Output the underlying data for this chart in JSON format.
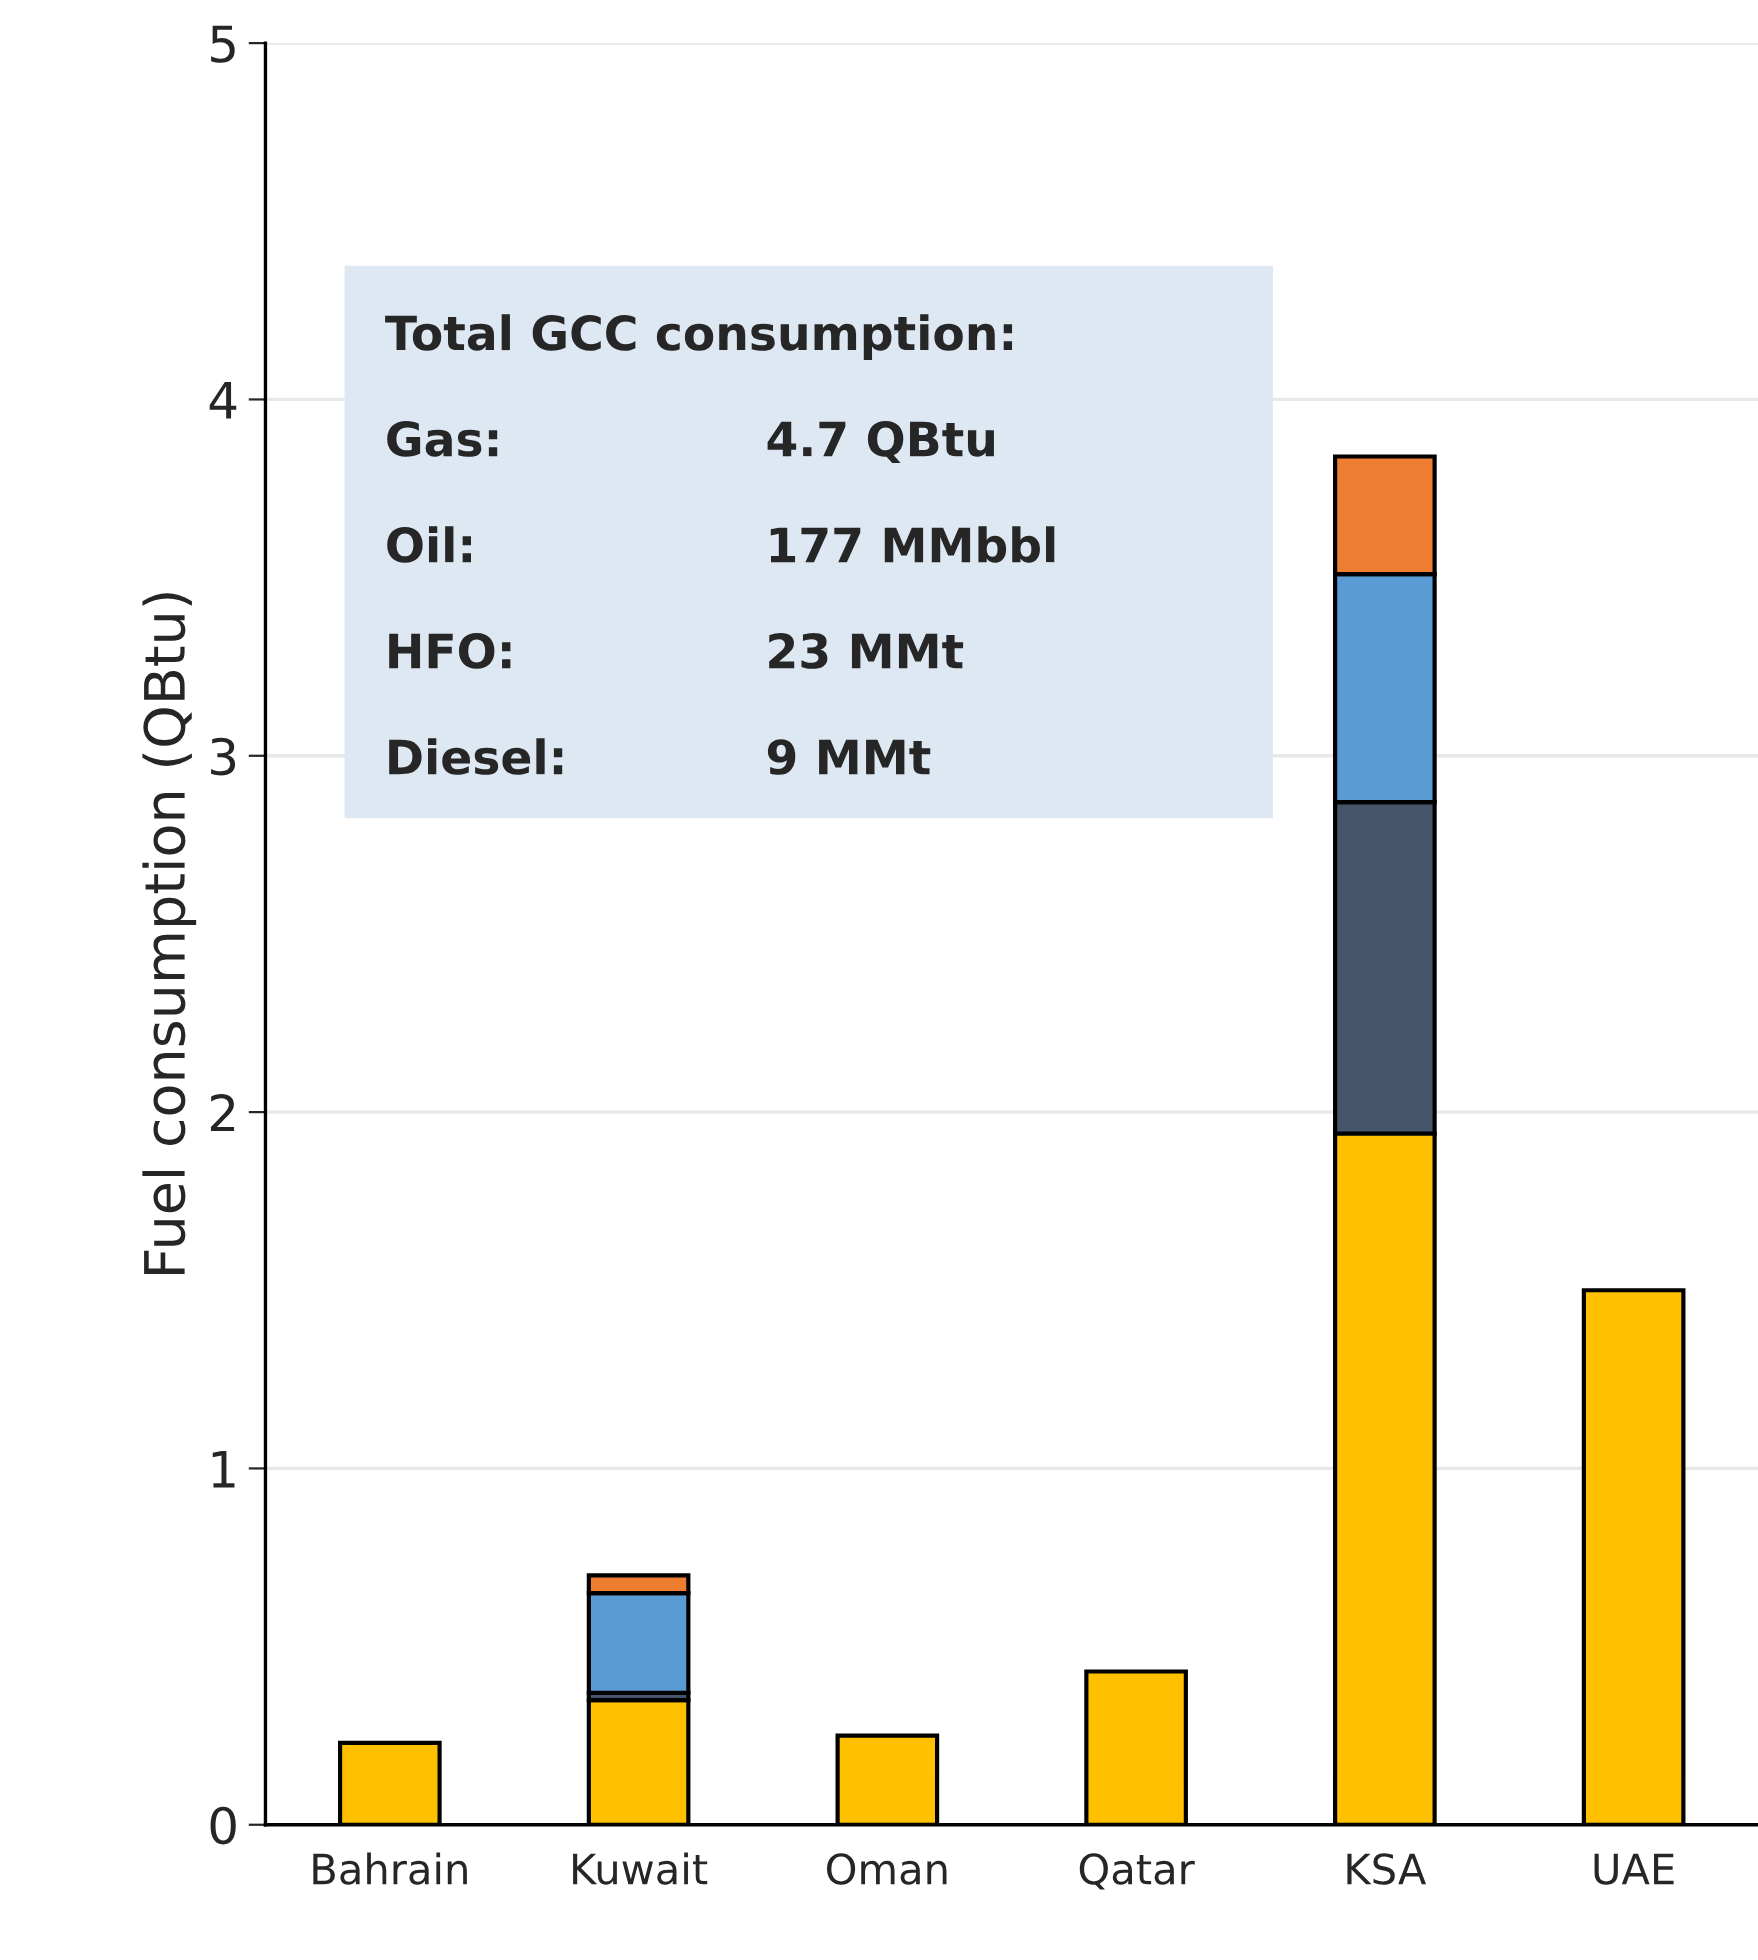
{
  "chart_data": {
    "type": "bar",
    "stacked": true,
    "ylabel": "Fuel consumption (QBtu)",
    "categories": [
      "Bahrain",
      "Kuwait",
      "Oman",
      "Qatar",
      "KSA",
      "UAE"
    ],
    "series": [
      {
        "color": "#ffc000",
        "values": [
          0.23,
          0.35,
          0.25,
          0.43,
          1.94,
          1.5
        ]
      },
      {
        "color": "#44546a",
        "values": [
          null,
          0.02,
          null,
          null,
          0.93,
          null
        ]
      },
      {
        "color": "#5b9bd5",
        "values": [
          null,
          0.28,
          null,
          null,
          0.64,
          null
        ]
      },
      {
        "color": "#ed7d31",
        "values": [
          null,
          0.05,
          null,
          null,
          0.33,
          null
        ]
      }
    ],
    "ylim": [
      0,
      5
    ],
    "yticks": [
      0,
      1,
      2,
      3,
      4,
      5
    ],
    "grid": "y",
    "legend": false,
    "annotations": [
      "Total GCC consumption:",
      "Gas:\t4.7 QBtu",
      "Oil:\t177 MMbbl",
      "HFO:\t23 MMt",
      "Diesel:\t9 MMt"
    ]
  }
}
